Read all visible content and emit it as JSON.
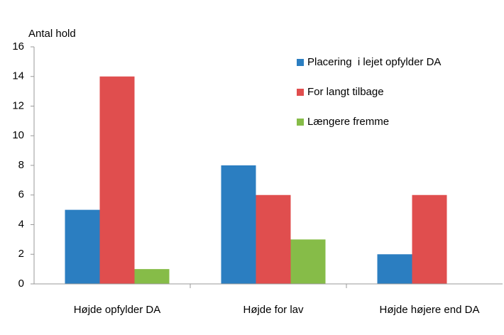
{
  "chart_data": {
    "type": "bar",
    "y_label": "Antal hold",
    "categories": [
      "Højde opfylder DA",
      "Højde for lav",
      "Højde højere end DA"
    ],
    "series": [
      {
        "name": "Placering  i lejet opfylder DA",
        "color": "#2b7ec1",
        "values": [
          5,
          8,
          2
        ]
      },
      {
        "name": "For langt tilbage",
        "color": "#e04e4e",
        "values": [
          14,
          6,
          6
        ]
      },
      {
        "name": "Længere fremme",
        "color": "#86bc48",
        "values": [
          1,
          3,
          0
        ]
      }
    ],
    "ylim": [
      0,
      16
    ],
    "yticks": [
      0,
      2,
      4,
      6,
      8,
      10,
      12,
      14,
      16
    ],
    "grid": false,
    "legend": "top-right"
  }
}
